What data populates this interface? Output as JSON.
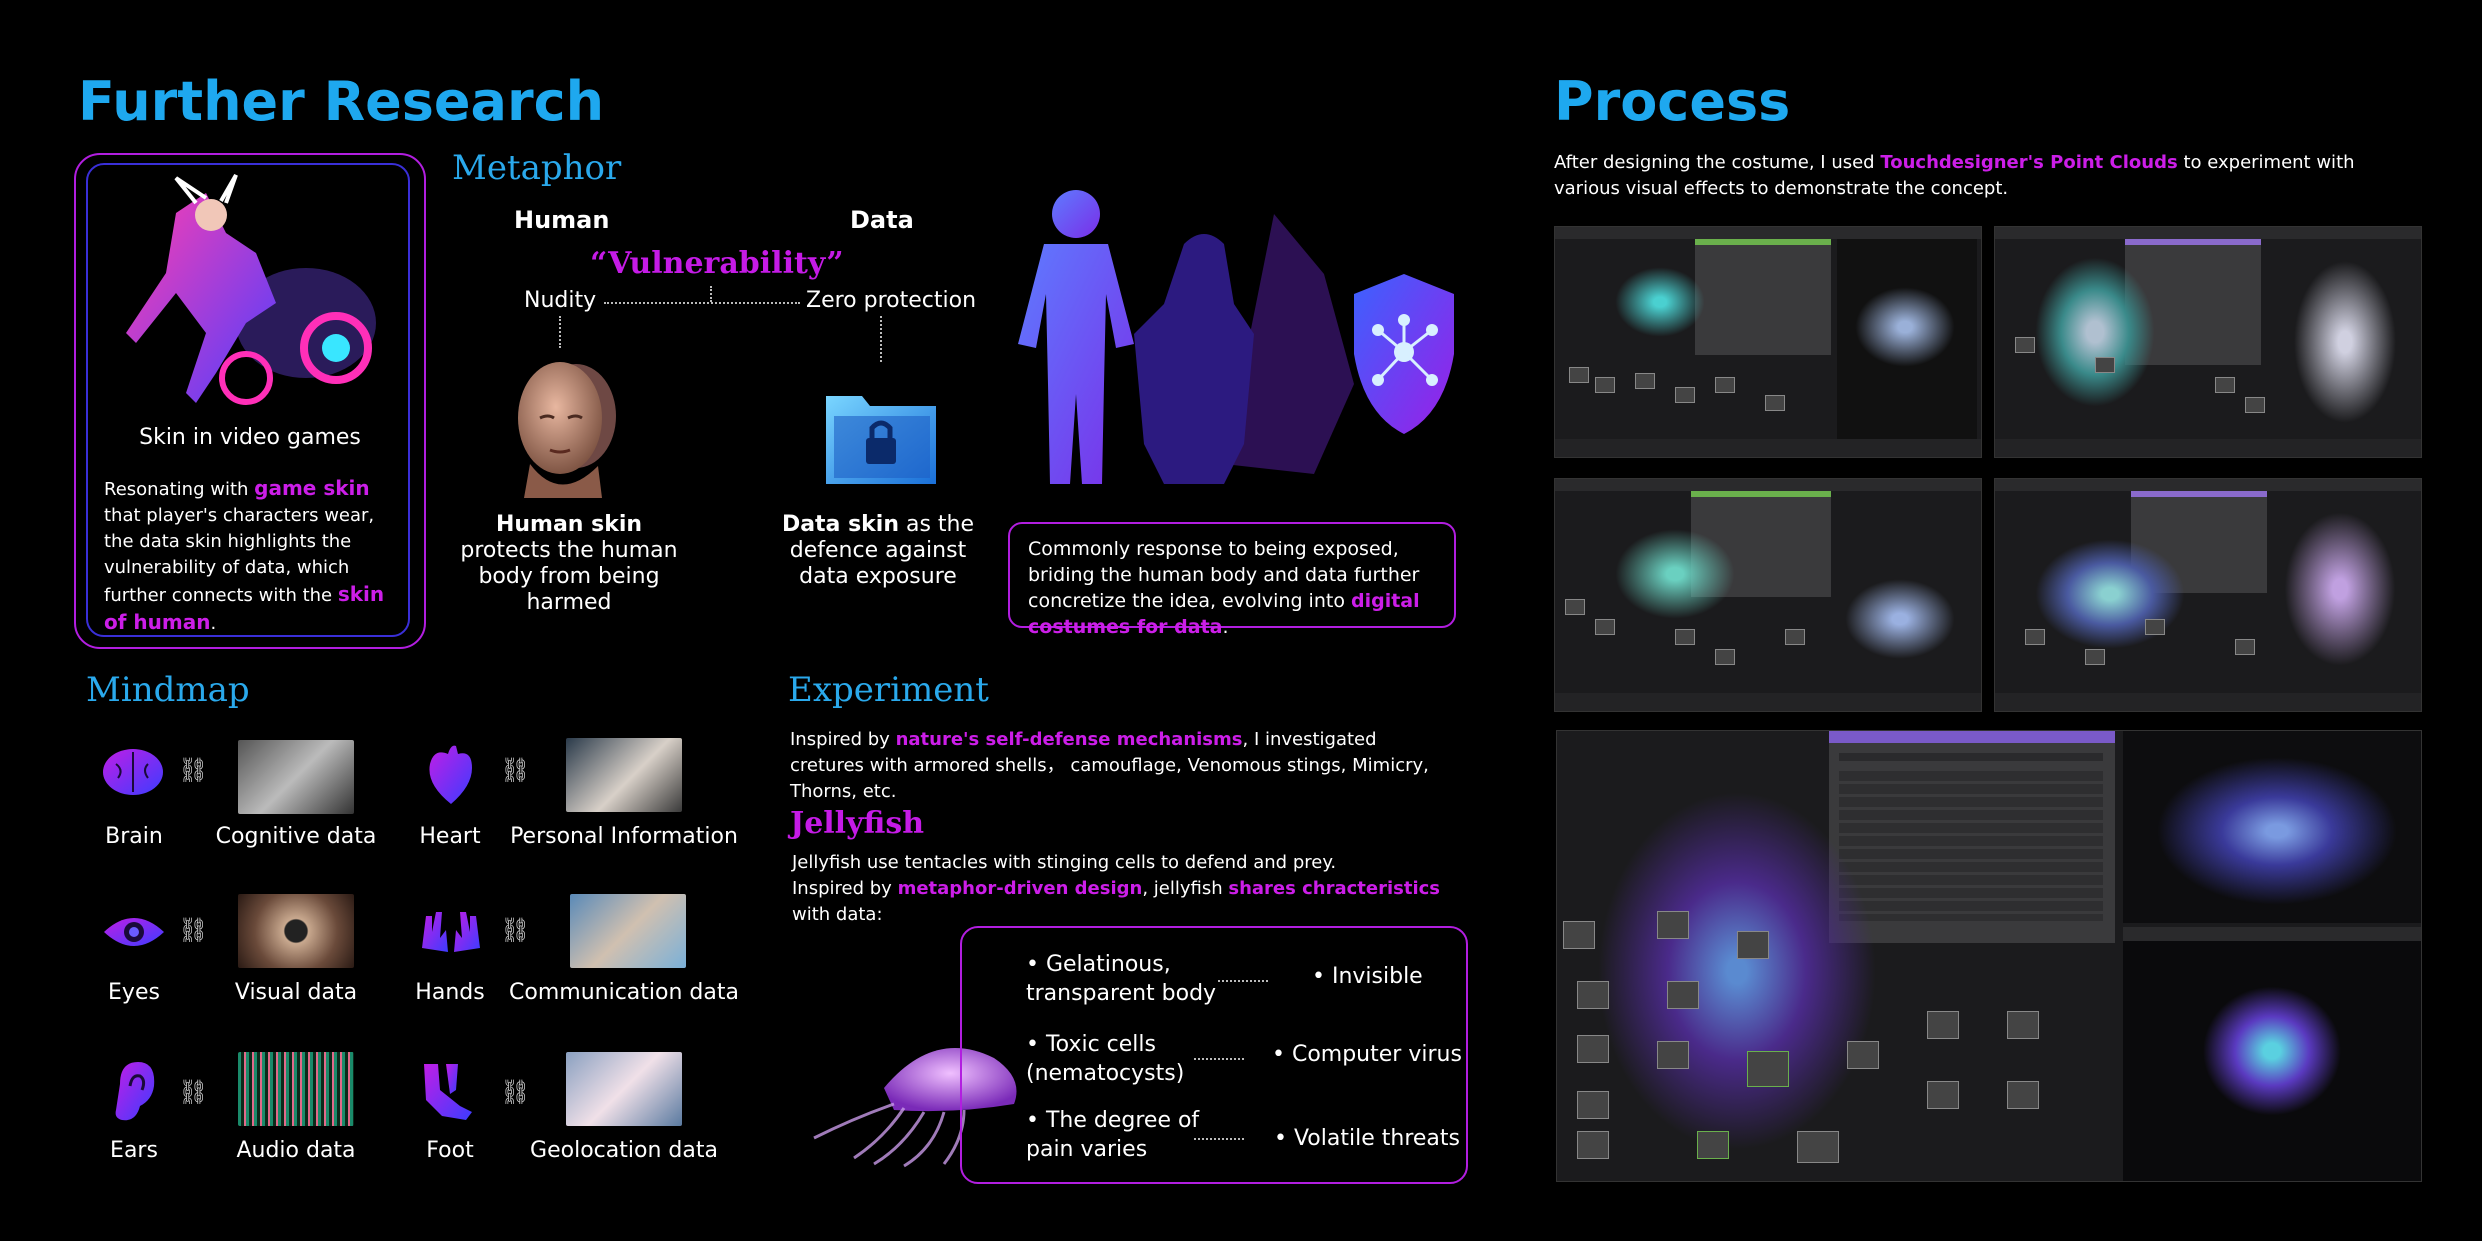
{
  "left": {
    "title": "Further Research",
    "game_card": {
      "caption": "Skin in video games",
      "p1": "Resonating with ",
      "hl1": "game skin",
      "p2": " that player's characters wear, the data skin highlights the vulnerability of data, which further connects with the ",
      "hl2": "skin of human",
      "p3": "."
    },
    "metaphor": {
      "title": "Metaphor",
      "human": "Human",
      "data": "Data",
      "vulnerability": "“Vulnerability”",
      "nudity": "Nudity",
      "zero": "Zero protection",
      "human_skin_bold": "Human skin",
      "human_skin_rest": " protects the human body from being harmed",
      "data_skin_bold": "Data skin",
      "data_skin_rest": " as the defence against data exposure",
      "box_text": "Commonly response to being exposed, briding the human body and data further concretize the idea, evolving into ",
      "box_hl": "digital costumes for data",
      "box_end": "."
    },
    "mindmap": {
      "title": "Mindmap",
      "items": [
        {
          "organ": "Brain",
          "data": "Cognitive data"
        },
        {
          "organ": "Heart",
          "data": "Personal Information"
        },
        {
          "organ": "Eyes",
          "data": "Visual data"
        },
        {
          "organ": "Hands",
          "data": "Communication data"
        },
        {
          "organ": "Ears",
          "data": "Audio data"
        },
        {
          "organ": "Foot",
          "data": "Geolocation data"
        }
      ]
    },
    "experiment": {
      "title": "Experiment",
      "p1": "Inspired by ",
      "hl": "nature's self-defense mechanisms",
      "p2": ", I investigated cretures with armored shells，  camouflage, Venomous stings, Mimicry, Thorns, etc."
    },
    "jellyfish": {
      "title": "Jellyfish",
      "line1": "Jellyfish use tentacles with stinging cells to defend and prey.",
      "l2a": "Inspired by ",
      "l2hl1": "metaphor-driven design",
      "l2b": ", jellyfish ",
      "l2hl2": "shares chracteristics",
      "l2c": " with data:",
      "rows": [
        {
          "left": "• Gelatinous, transparent body",
          "right": "• Invisible"
        },
        {
          "left": "• Toxic cells (nematocysts)",
          "right": "• Computer virus"
        },
        {
          "left": "• The degree of pain varies",
          "right": "• Volatile threats"
        }
      ]
    }
  },
  "right": {
    "title": "Process",
    "p1": "After designing the costume, I used ",
    "hl": "Touchdesigner's Point Clouds",
    "p2": " to experiment with various visual effects to demonstrate the concept."
  },
  "colors": {
    "accent_blue": "#1ea8ef",
    "magenta": "#cc1ee8",
    "violet": "#3a2fd8"
  }
}
